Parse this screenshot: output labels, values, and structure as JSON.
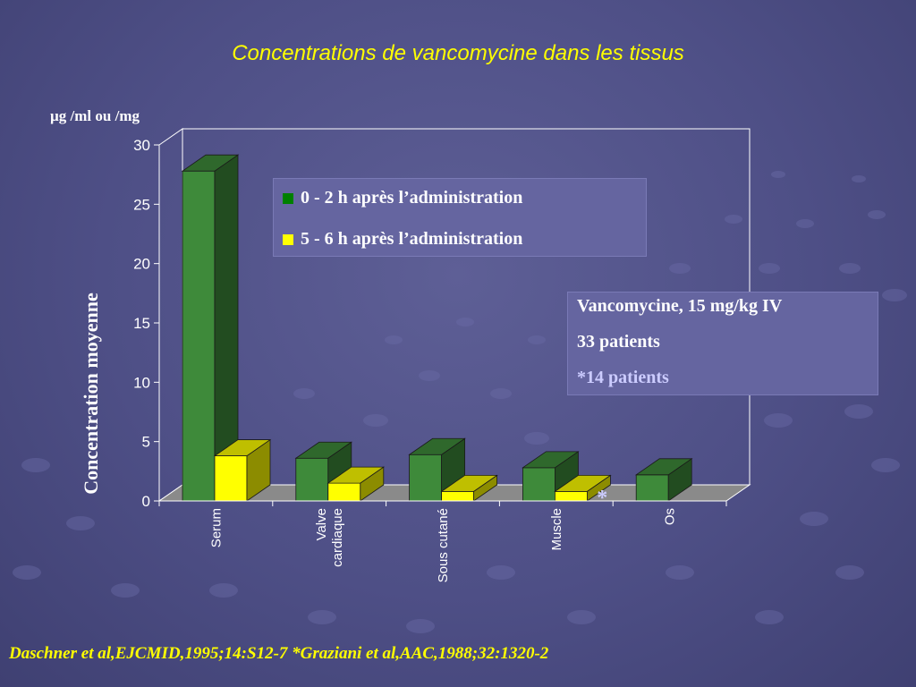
{
  "title": "Concentrations de vancomycine dans les tissus",
  "unit_label": "µg /ml ou /mg",
  "colors": {
    "series_early": "#3e8a3a",
    "series_late": "#ffff00",
    "title_text": "#ffff00",
    "footer_text": "#ffff00",
    "info_highlight": "#ccccff"
  },
  "legend": {
    "items": [
      {
        "label": "0 - 2 h après l’administration",
        "color": "#008000"
      },
      {
        "label": "5 - 6 h après l’administration",
        "color": "#ffff00"
      }
    ]
  },
  "info_box": {
    "line1": "Vancomycine, 15 mg/kg IV",
    "line2": "33 patients",
    "line3": "*14 patients"
  },
  "footer": "Daschner et al,EJCMID,1995;14:S12-7 *Graziani et al,AAC,1988;32:1320-2",
  "chart_data": {
    "type": "bar",
    "title": "Concentrations de vancomycine dans les tissus",
    "xlabel": "",
    "ylabel": "Concentration moyenne",
    "ylim": [
      0,
      30
    ],
    "yticks": [
      0,
      5,
      10,
      15,
      20,
      25,
      30
    ],
    "categories": [
      "Serum",
      "Valve cardiaque",
      "Sous cutané",
      "Muscle",
      "Os"
    ],
    "category_labels": [
      [
        "Serum"
      ],
      [
        "Valve",
        "cardiaque"
      ],
      [
        "Sous cutané"
      ],
      [
        "Muscle"
      ],
      [
        "Os"
      ]
    ],
    "series": [
      {
        "name": "0 - 2 h après l’administration",
        "values": [
          27.8,
          3.6,
          3.9,
          2.8,
          2.2
        ]
      },
      {
        "name": "5 - 6 h après l’administration",
        "values": [
          3.8,
          1.5,
          0.8,
          0.8,
          null
        ]
      }
    ],
    "annotations": [
      {
        "text": "*",
        "category": "Os"
      }
    ],
    "grid": false,
    "legend_position": "top"
  }
}
